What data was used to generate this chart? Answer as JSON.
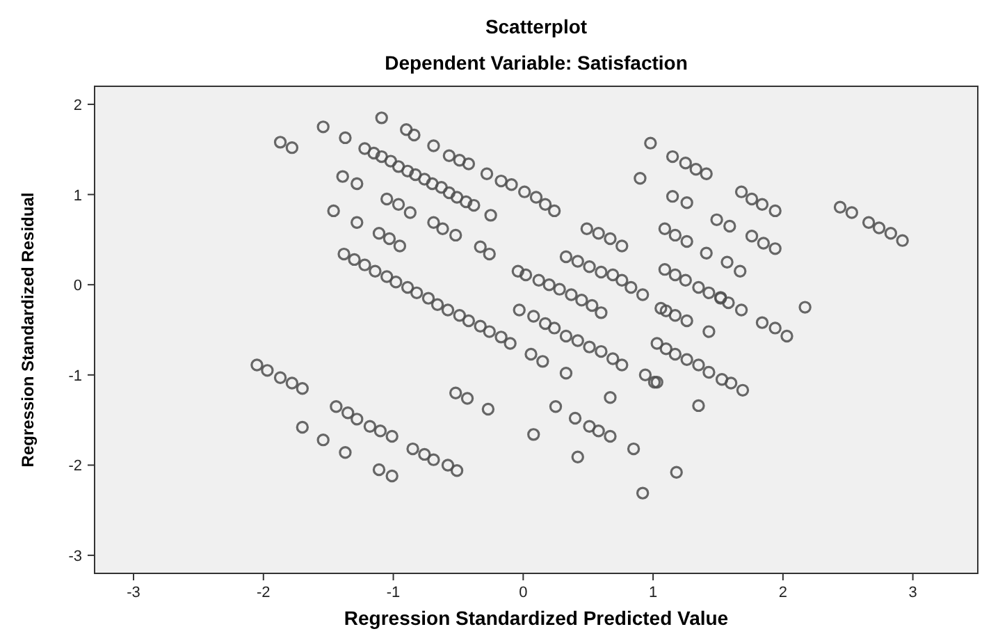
{
  "chart_data": {
    "type": "scatter",
    "title": "Scatterplot",
    "subtitle": "Dependent Variable: Satisfaction",
    "xlabel": "Regression Standardized Predicted Value",
    "ylabel": "Regression Standardized Residual",
    "xlim": [
      -3.3,
      3.5
    ],
    "ylim": [
      -3.2,
      2.2
    ],
    "xticks": [
      -3,
      -2,
      -1,
      0,
      1,
      2,
      3
    ],
    "yticks": [
      -3,
      -2,
      -1,
      0,
      1,
      2
    ],
    "grid": false,
    "marker": "circle",
    "series": [
      {
        "color": "#4d4d4d",
        "x": [
          -1.87,
          -1.78,
          -1.54,
          -1.37,
          -1.09,
          -0.9,
          -0.84,
          -0.69,
          -0.57,
          -0.49,
          -0.42,
          -0.28,
          -0.17,
          -0.09,
          0.01,
          0.1,
          0.17,
          0.24,
          -1.22,
          -1.15,
          -1.09,
          -1.02,
          -0.96,
          -0.89,
          -0.83,
          -0.76,
          -0.7,
          -0.63,
          -0.57,
          -0.51,
          -0.44,
          -0.38,
          -1.39,
          -1.28,
          -1.46,
          -1.28,
          -1.11,
          -1.03,
          -0.95,
          -1.05,
          -0.96,
          -0.87,
          -0.69,
          -0.62,
          -0.52,
          -0.25,
          -0.33,
          -0.26,
          -1.38,
          -1.3,
          -1.22,
          -1.14,
          -1.05,
          -0.98,
          -0.89,
          -0.82,
          -0.73,
          -0.66,
          -0.58,
          -0.49,
          -0.42,
          -0.33,
          -0.26,
          -0.17,
          -0.1,
          -0.04,
          0.02,
          0.12,
          0.2,
          0.28,
          0.37,
          0.45,
          0.53,
          0.6,
          -0.03,
          0.08,
          0.17,
          0.24,
          0.33,
          0.42,
          0.51,
          0.6,
          0.69,
          0.76,
          0.98,
          0.9,
          0.49,
          0.58,
          0.67,
          0.76,
          0.33,
          0.42,
          0.51,
          0.6,
          0.69,
          0.76,
          0.83,
          0.92,
          1.15,
          1.25,
          1.33,
          1.41,
          1.15,
          1.26,
          1.68,
          1.76,
          1.84,
          1.94,
          2.44,
          2.53,
          2.66,
          2.74,
          2.83,
          2.92,
          1.09,
          1.17,
          1.26,
          1.49,
          1.59,
          1.41,
          1.76,
          1.85,
          1.94,
          1.57,
          1.67,
          1.09,
          1.17,
          1.25,
          1.35,
          1.43,
          1.52,
          1.06,
          1.1,
          1.17,
          1.26,
          1.52,
          1.58,
          1.68,
          1.43,
          1.84,
          1.94,
          2.03,
          2.17,
          1.03,
          1.1,
          1.17,
          1.26,
          1.35,
          1.43,
          1.53,
          1.6,
          1.69,
          1.03,
          1.35,
          1.18,
          -2.05,
          -1.97,
          -1.87,
          -1.78,
          -1.7,
          -1.44,
          -1.35,
          -1.28,
          -1.18,
          -1.1,
          -1.01,
          -1.7,
          -1.54,
          -1.37,
          -1.11,
          -1.01,
          -0.85,
          -0.76,
          -0.69,
          -0.58,
          -0.51,
          -0.52,
          -0.43,
          -0.27,
          0.08,
          0.25,
          0.67,
          0.4,
          0.51,
          0.58,
          0.67,
          0.33,
          0.06,
          0.15,
          0.42,
          0.85,
          0.92,
          0.94,
          1.01
        ],
        "values": [
          1.58,
          1.52,
          1.75,
          1.63,
          1.85,
          1.72,
          1.66,
          1.54,
          1.43,
          1.38,
          1.34,
          1.23,
          1.15,
          1.11,
          1.03,
          0.97,
          0.89,
          0.82,
          1.51,
          1.46,
          1.42,
          1.37,
          1.31,
          1.26,
          1.22,
          1.17,
          1.12,
          1.08,
          1.02,
          0.97,
          0.92,
          0.88,
          1.2,
          1.12,
          0.82,
          0.69,
          0.57,
          0.51,
          0.43,
          0.95,
          0.89,
          0.8,
          0.69,
          0.62,
          0.55,
          0.77,
          0.42,
          0.34,
          0.34,
          0.28,
          0.22,
          0.15,
          0.09,
          0.03,
          -0.03,
          -0.09,
          -0.15,
          -0.22,
          -0.28,
          -0.34,
          -0.4,
          -0.46,
          -0.52,
          -0.58,
          -0.65,
          0.15,
          0.11,
          0.05,
          0.0,
          -0.05,
          -0.11,
          -0.17,
          -0.23,
          -0.31,
          -0.28,
          -0.35,
          -0.43,
          -0.48,
          -0.57,
          -0.62,
          -0.69,
          -0.74,
          -0.82,
          -0.89,
          1.57,
          1.18,
          0.62,
          0.57,
          0.51,
          0.43,
          0.31,
          0.26,
          0.2,
          0.14,
          0.11,
          0.05,
          -0.03,
          -0.11,
          1.42,
          1.35,
          1.28,
          1.23,
          0.98,
          0.91,
          1.03,
          0.95,
          0.89,
          0.82,
          0.86,
          0.8,
          0.69,
          0.63,
          0.57,
          0.49,
          0.62,
          0.55,
          0.48,
          0.72,
          0.65,
          0.35,
          0.54,
          0.46,
          0.4,
          0.25,
          0.15,
          0.17,
          0.11,
          0.05,
          -0.03,
          -0.09,
          -0.14,
          -0.26,
          -0.29,
          -0.34,
          -0.4,
          -0.15,
          -0.2,
          -0.28,
          -0.52,
          -0.42,
          -0.48,
          -0.57,
          -0.25,
          -0.65,
          -0.71,
          -0.77,
          -0.83,
          -0.89,
          -0.97,
          -1.05,
          -1.09,
          -1.17,
          -1.08,
          -1.34,
          -2.08,
          -0.89,
          -0.95,
          -1.03,
          -1.09,
          -1.15,
          -1.35,
          -1.42,
          -1.49,
          -1.57,
          -1.62,
          -1.68,
          -1.58,
          -1.72,
          -1.86,
          -2.05,
          -2.12,
          -1.82,
          -1.88,
          -1.94,
          -2.0,
          -2.06,
          -1.2,
          -1.26,
          -1.38,
          -1.66,
          -1.35,
          -1.25,
          -1.48,
          -1.57,
          -1.62,
          -1.68,
          -0.98,
          -0.77,
          -0.85,
          -1.91,
          -1.82,
          -2.31,
          -1.0,
          -1.08
        ]
      }
    ]
  }
}
